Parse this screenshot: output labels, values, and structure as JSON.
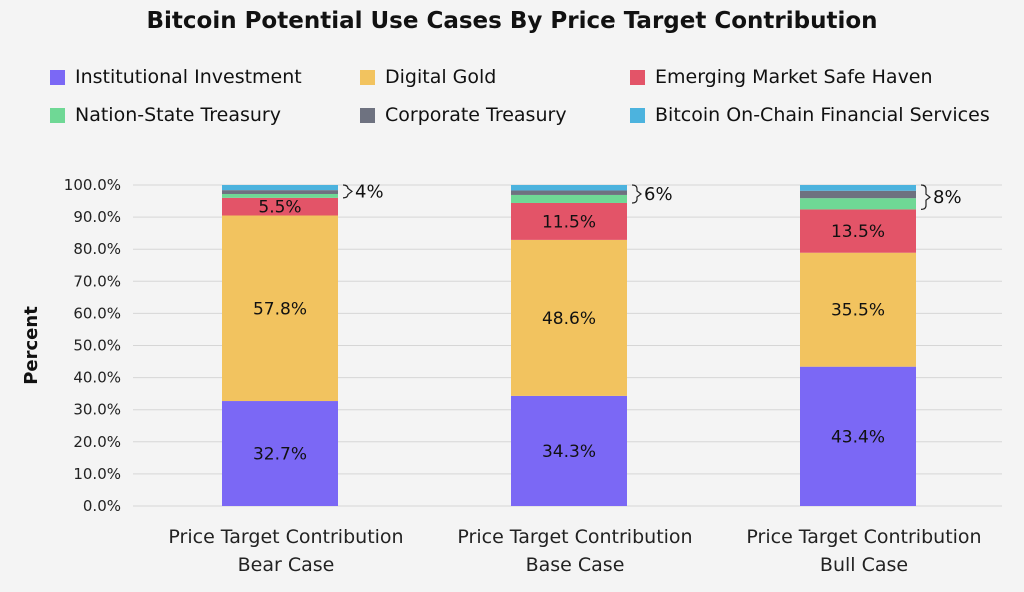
{
  "chart_data": {
    "type": "bar",
    "stacked": true,
    "title": "Bitcoin Potential Use Cases By Price Target Contribution",
    "ylabel": "Percent",
    "xlabel": "",
    "ylim": [
      0,
      100
    ],
    "yticks": [
      "0.0%",
      "10.0%",
      "20.0%",
      "30.0%",
      "40.0%",
      "50.0%",
      "60.0%",
      "70.0%",
      "80.0%",
      "90.0%",
      "100.0%"
    ],
    "grid": true,
    "legend_position": "top",
    "categories": [
      [
        "Price Target Contribution",
        "Bear Case"
      ],
      [
        "Price Target Contribution",
        "Base Case"
      ],
      [
        "Price Target Contribution",
        "Bull Case"
      ]
    ],
    "series": [
      {
        "name": "Institutional Investment",
        "color": "#7b68f5",
        "values": [
          32.7,
          34.3,
          43.4
        ],
        "labels": [
          "32.7%",
          "34.3%",
          "43.4%"
        ]
      },
      {
        "name": "Digital Gold",
        "color": "#f2c35f",
        "values": [
          57.8,
          48.6,
          35.5
        ],
        "labels": [
          "57.8%",
          "48.6%",
          "35.5%"
        ]
      },
      {
        "name": "Emerging Market Safe Haven",
        "color": "#e35468",
        "values": [
          5.5,
          11.5,
          13.5
        ],
        "labels": [
          "5.5%",
          "11.5%",
          "13.5%"
        ]
      },
      {
        "name": "Nation-State Treasury",
        "color": "#6fd895",
        "values": [
          1.2,
          2.5,
          3.5
        ],
        "labels": [
          "",
          "",
          ""
        ]
      },
      {
        "name": "Corporate Treasury",
        "color": "#6e7280",
        "values": [
          1.2,
          1.4,
          2.3
        ],
        "labels": [
          "",
          "",
          ""
        ]
      },
      {
        "name": "Bitcoin On-Chain Financial Services",
        "color": "#4cb3de",
        "values": [
          1.6,
          1.7,
          1.8
        ],
        "labels": [
          "",
          "",
          ""
        ]
      }
    ],
    "bracket_annotations": [
      "4%",
      "6%",
      "8%"
    ]
  }
}
